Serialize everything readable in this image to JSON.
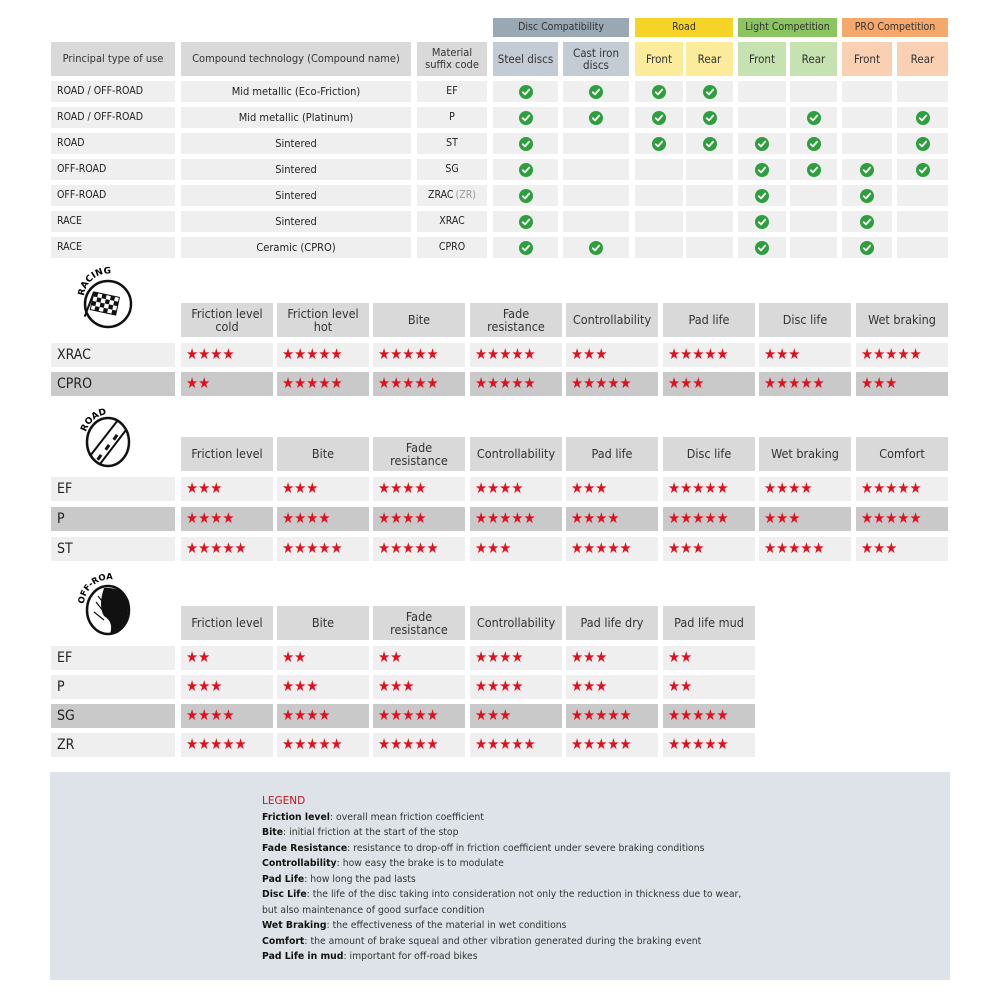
{
  "compat_table": {
    "groups": [
      {
        "label": "Disc Compatibility",
        "color": "#9aa8b4",
        "light": "#c3ccd4",
        "span": 2
      },
      {
        "label": "Road",
        "color": "#f5d327",
        "light": "#fbeb9b",
        "span": 2
      },
      {
        "label": "Light Competition",
        "color": "#8cc461",
        "light": "#c6e2b0",
        "span": 2
      },
      {
        "label": "PRO Competition",
        "color": "#f4a86b",
        "light": "#f9d1b2",
        "span": 2
      }
    ],
    "headers": [
      "Principal type of use",
      "Compound technology (Compound name)",
      "Material suffix code"
    ],
    "sub_headers": [
      "Steel discs",
      "Cast iron discs",
      "Front",
      "Rear",
      "Front",
      "Rear",
      "Front",
      "Rear"
    ],
    "check_icon": "check-circle-icon",
    "check_color": "#2e9e3e",
    "rows": [
      {
        "use": "ROAD / OFF-ROAD",
        "compound": "Mid metallic (Eco-Friction)",
        "code": "EF",
        "alias": "",
        "checks": [
          true,
          true,
          true,
          true,
          false,
          false,
          false,
          false
        ]
      },
      {
        "use": "ROAD / OFF-ROAD",
        "compound": "Mid metallic (Platinum)",
        "code": "P",
        "alias": "",
        "checks": [
          true,
          true,
          true,
          true,
          false,
          true,
          false,
          true
        ]
      },
      {
        "use": "ROAD",
        "compound": "Sintered",
        "code": "ST",
        "alias": "",
        "checks": [
          true,
          false,
          true,
          true,
          true,
          true,
          false,
          true
        ]
      },
      {
        "use": "OFF-ROAD",
        "compound": "Sintered",
        "code": "SG",
        "alias": "",
        "checks": [
          true,
          false,
          false,
          false,
          true,
          true,
          true,
          true
        ]
      },
      {
        "use": "OFF-ROAD",
        "compound": "Sintered",
        "code": "ZRAC",
        "alias": "(ZR)",
        "checks": [
          true,
          false,
          false,
          false,
          true,
          false,
          true,
          false
        ]
      },
      {
        "use": "RACE",
        "compound": "Sintered",
        "code": "XRAC",
        "alias": "",
        "checks": [
          true,
          false,
          false,
          false,
          true,
          false,
          true,
          false
        ]
      },
      {
        "use": "RACE",
        "compound": "Ceramic (CPRO)",
        "code": "CPRO",
        "alias": "",
        "checks": [
          true,
          true,
          false,
          false,
          true,
          false,
          true,
          false
        ]
      }
    ]
  },
  "rating_tables": [
    {
      "id": "racing",
      "badge": "RACING",
      "icon": "checkered-flag-icon",
      "columns": [
        "Friction level cold",
        "Friction level hot",
        "Bite",
        "Fade resistance",
        "Controllability",
        "Pad life",
        "Disc life",
        "Wet braking"
      ],
      "rows": [
        {
          "label": "XRAC",
          "shade": "light",
          "ratings": [
            4,
            5,
            5,
            5,
            3,
            5,
            3,
            5
          ]
        },
        {
          "label": "CPRO",
          "shade": "dark",
          "ratings": [
            2,
            5,
            5,
            5,
            5,
            3,
            5,
            3
          ]
        }
      ]
    },
    {
      "id": "road",
      "badge": "ROAD",
      "icon": "road-icon",
      "columns": [
        "Friction level",
        "Bite",
        "Fade resistance",
        "Controllability",
        "Pad life",
        "Disc life",
        "Wet braking",
        "Comfort"
      ],
      "rows": [
        {
          "label": "EF",
          "shade": "light",
          "ratings": [
            3,
            3,
            4,
            4,
            3,
            5,
            4,
            5
          ]
        },
        {
          "label": "P",
          "shade": "dark",
          "ratings": [
            4,
            4,
            4,
            5,
            4,
            5,
            3,
            5
          ]
        },
        {
          "label": "ST",
          "shade": "light",
          "ratings": [
            5,
            5,
            5,
            3,
            5,
            3,
            5,
            3
          ]
        }
      ]
    },
    {
      "id": "offroad",
      "badge": "OFF-ROAD",
      "icon": "mud-wheel-icon",
      "columns": [
        "Friction level",
        "Bite",
        "Fade resistance",
        "Controllability",
        "Pad life dry",
        "Pad life mud"
      ],
      "rows": [
        {
          "label": "EF",
          "shade": "light",
          "ratings": [
            2,
            2,
            2,
            4,
            3,
            2
          ]
        },
        {
          "label": "P",
          "shade": "light",
          "ratings": [
            3,
            3,
            3,
            4,
            3,
            2
          ]
        },
        {
          "label": "SG",
          "shade": "dark",
          "ratings": [
            4,
            4,
            5,
            3,
            5,
            5
          ]
        },
        {
          "label": "ZR",
          "shade": "light",
          "ratings": [
            5,
            5,
            5,
            5,
            5,
            5
          ]
        }
      ]
    }
  ],
  "star_color": "#e0101f",
  "legend": {
    "title": "LEGEND",
    "items": [
      {
        "term": "Friction level",
        "desc": ": overall mean friction coefficient"
      },
      {
        "term": "Bite",
        "desc": ": initial friction at the start of the stop"
      },
      {
        "term": "Fade Resistance",
        "desc": ": resistance to drop-off in friction coefficient under severe braking conditions"
      },
      {
        "term": "Controllability",
        "desc": ": how easy the brake is to modulate"
      },
      {
        "term": "Pad Life",
        "desc": ": how long the pad lasts"
      },
      {
        "term": "Disc Life",
        "desc": ": the life of the disc taking into consideration not only the reduction in thickness due to wear,"
      },
      {
        "term": "",
        "desc": "but also maintenance of good surface condition"
      },
      {
        "term": "Wet Braking",
        "desc": ": the effectiveness of the material in wet conditions"
      },
      {
        "term": "Comfort",
        "desc": ": the amount of brake squeal and other vibration generated during the braking event"
      },
      {
        "term": "Pad Life in mud",
        "desc": ": important for off-road bikes"
      }
    ]
  }
}
